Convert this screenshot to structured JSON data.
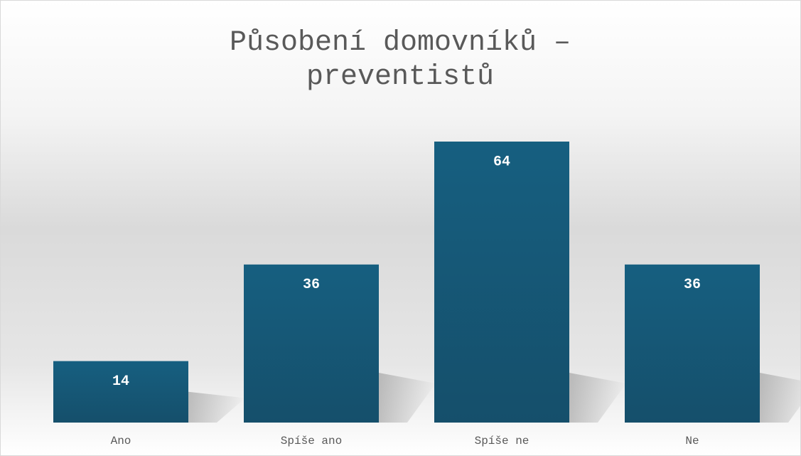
{
  "chart_data": {
    "type": "bar",
    "title": "Působení domovníků – preventistů",
    "categories": [
      "Ano",
      "Spíše ano",
      "Spíše ne",
      "Ne"
    ],
    "values": [
      14,
      36,
      64,
      36
    ],
    "color": "#165f80"
  }
}
